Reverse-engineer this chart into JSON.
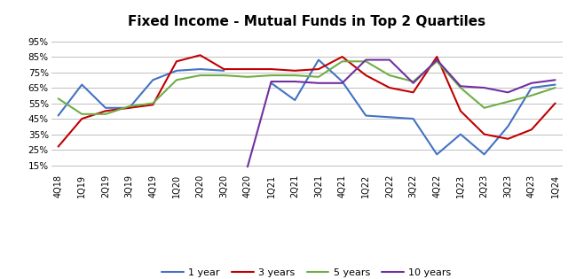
{
  "title": "Fixed Income - Mutual Funds in Top 2 Quartiles",
  "categories": [
    "4Q18",
    "1Q19",
    "2Q19",
    "3Q19",
    "4Q19",
    "1Q20",
    "2Q20",
    "3Q20",
    "4Q20",
    "1Q21",
    "2Q21",
    "3Q21",
    "4Q21",
    "1Q22",
    "2Q22",
    "3Q22",
    "4Q22",
    "1Q23",
    "2Q23",
    "3Q23",
    "4Q23",
    "1Q24"
  ],
  "series": {
    "1 year": [
      0.47,
      0.67,
      0.52,
      0.52,
      0.7,
      0.76,
      0.77,
      0.76,
      null,
      0.68,
      0.57,
      0.83,
      0.69,
      0.47,
      0.46,
      0.45,
      0.22,
      0.35,
      0.22,
      0.4,
      0.65,
      0.67
    ],
    "3 years": [
      0.27,
      0.45,
      0.5,
      0.52,
      0.54,
      0.82,
      0.86,
      0.77,
      0.77,
      0.77,
      0.76,
      0.77,
      0.85,
      0.73,
      0.65,
      0.62,
      0.85,
      0.5,
      0.35,
      0.32,
      0.38,
      0.55
    ],
    "5 years": [
      0.58,
      0.48,
      0.48,
      0.53,
      0.55,
      0.7,
      0.73,
      0.73,
      0.72,
      0.73,
      0.73,
      0.72,
      0.82,
      0.82,
      0.73,
      0.69,
      0.82,
      0.65,
      0.52,
      0.56,
      0.6,
      0.65
    ],
    "10 years": [
      null,
      null,
      null,
      null,
      null,
      null,
      null,
      null,
      0.14,
      0.69,
      0.69,
      0.68,
      0.68,
      0.83,
      0.83,
      0.68,
      0.83,
      0.66,
      0.65,
      0.62,
      0.68,
      0.7
    ]
  },
  "colors": {
    "1 year": "#4472C4",
    "3 years": "#C00000",
    "5 years": "#70AD47",
    "10 years": "#7030A0"
  },
  "ylim": [
    0.1,
    1.0
  ],
  "yticks": [
    0.15,
    0.25,
    0.35,
    0.45,
    0.55,
    0.65,
    0.75,
    0.85,
    0.95
  ],
  "background_color": "#ffffff",
  "grid_color": "#c0c0c0",
  "title_fontsize": 11,
  "tick_fontsize": 7,
  "legend_fontsize": 8
}
